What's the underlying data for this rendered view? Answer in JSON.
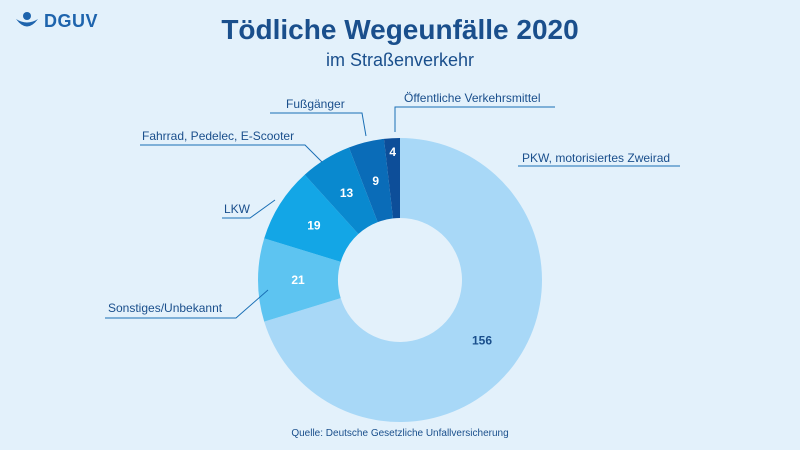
{
  "logo": {
    "text": "DGUV",
    "icon": "dguv-logo-icon"
  },
  "header": {
    "title": "Tödliche Wegeunfälle 2020",
    "subtitle": "im Straßenverkehr"
  },
  "footer": {
    "source": "Quelle: Deutsche Gesetzliche Unfallversicherung"
  },
  "chart_data": {
    "type": "pie",
    "subtype": "donut",
    "title": "Tödliche Wegeunfälle 2020",
    "subtitle": "im Straßenverkehr",
    "categories": [
      "PKW, motorisiertes Zweirad",
      "Sonstiges/Unbekannt",
      "LKW",
      "Fahrrad, Pedelec, E-Scooter",
      "Fußgänger",
      "Öffentliche Verkehrsmittel"
    ],
    "values": [
      156,
      21,
      19,
      13,
      9,
      4
    ],
    "colors": [
      "#a8d8f7",
      "#5dc4f1",
      "#13a6e6",
      "#0989cf",
      "#0a6cb8",
      "#0d4e99"
    ],
    "label_colors": [
      "#1a4f8c",
      "#ffffff",
      "#ffffff",
      "#ffffff",
      "#ffffff",
      "#ffffff"
    ],
    "legend": "none"
  }
}
